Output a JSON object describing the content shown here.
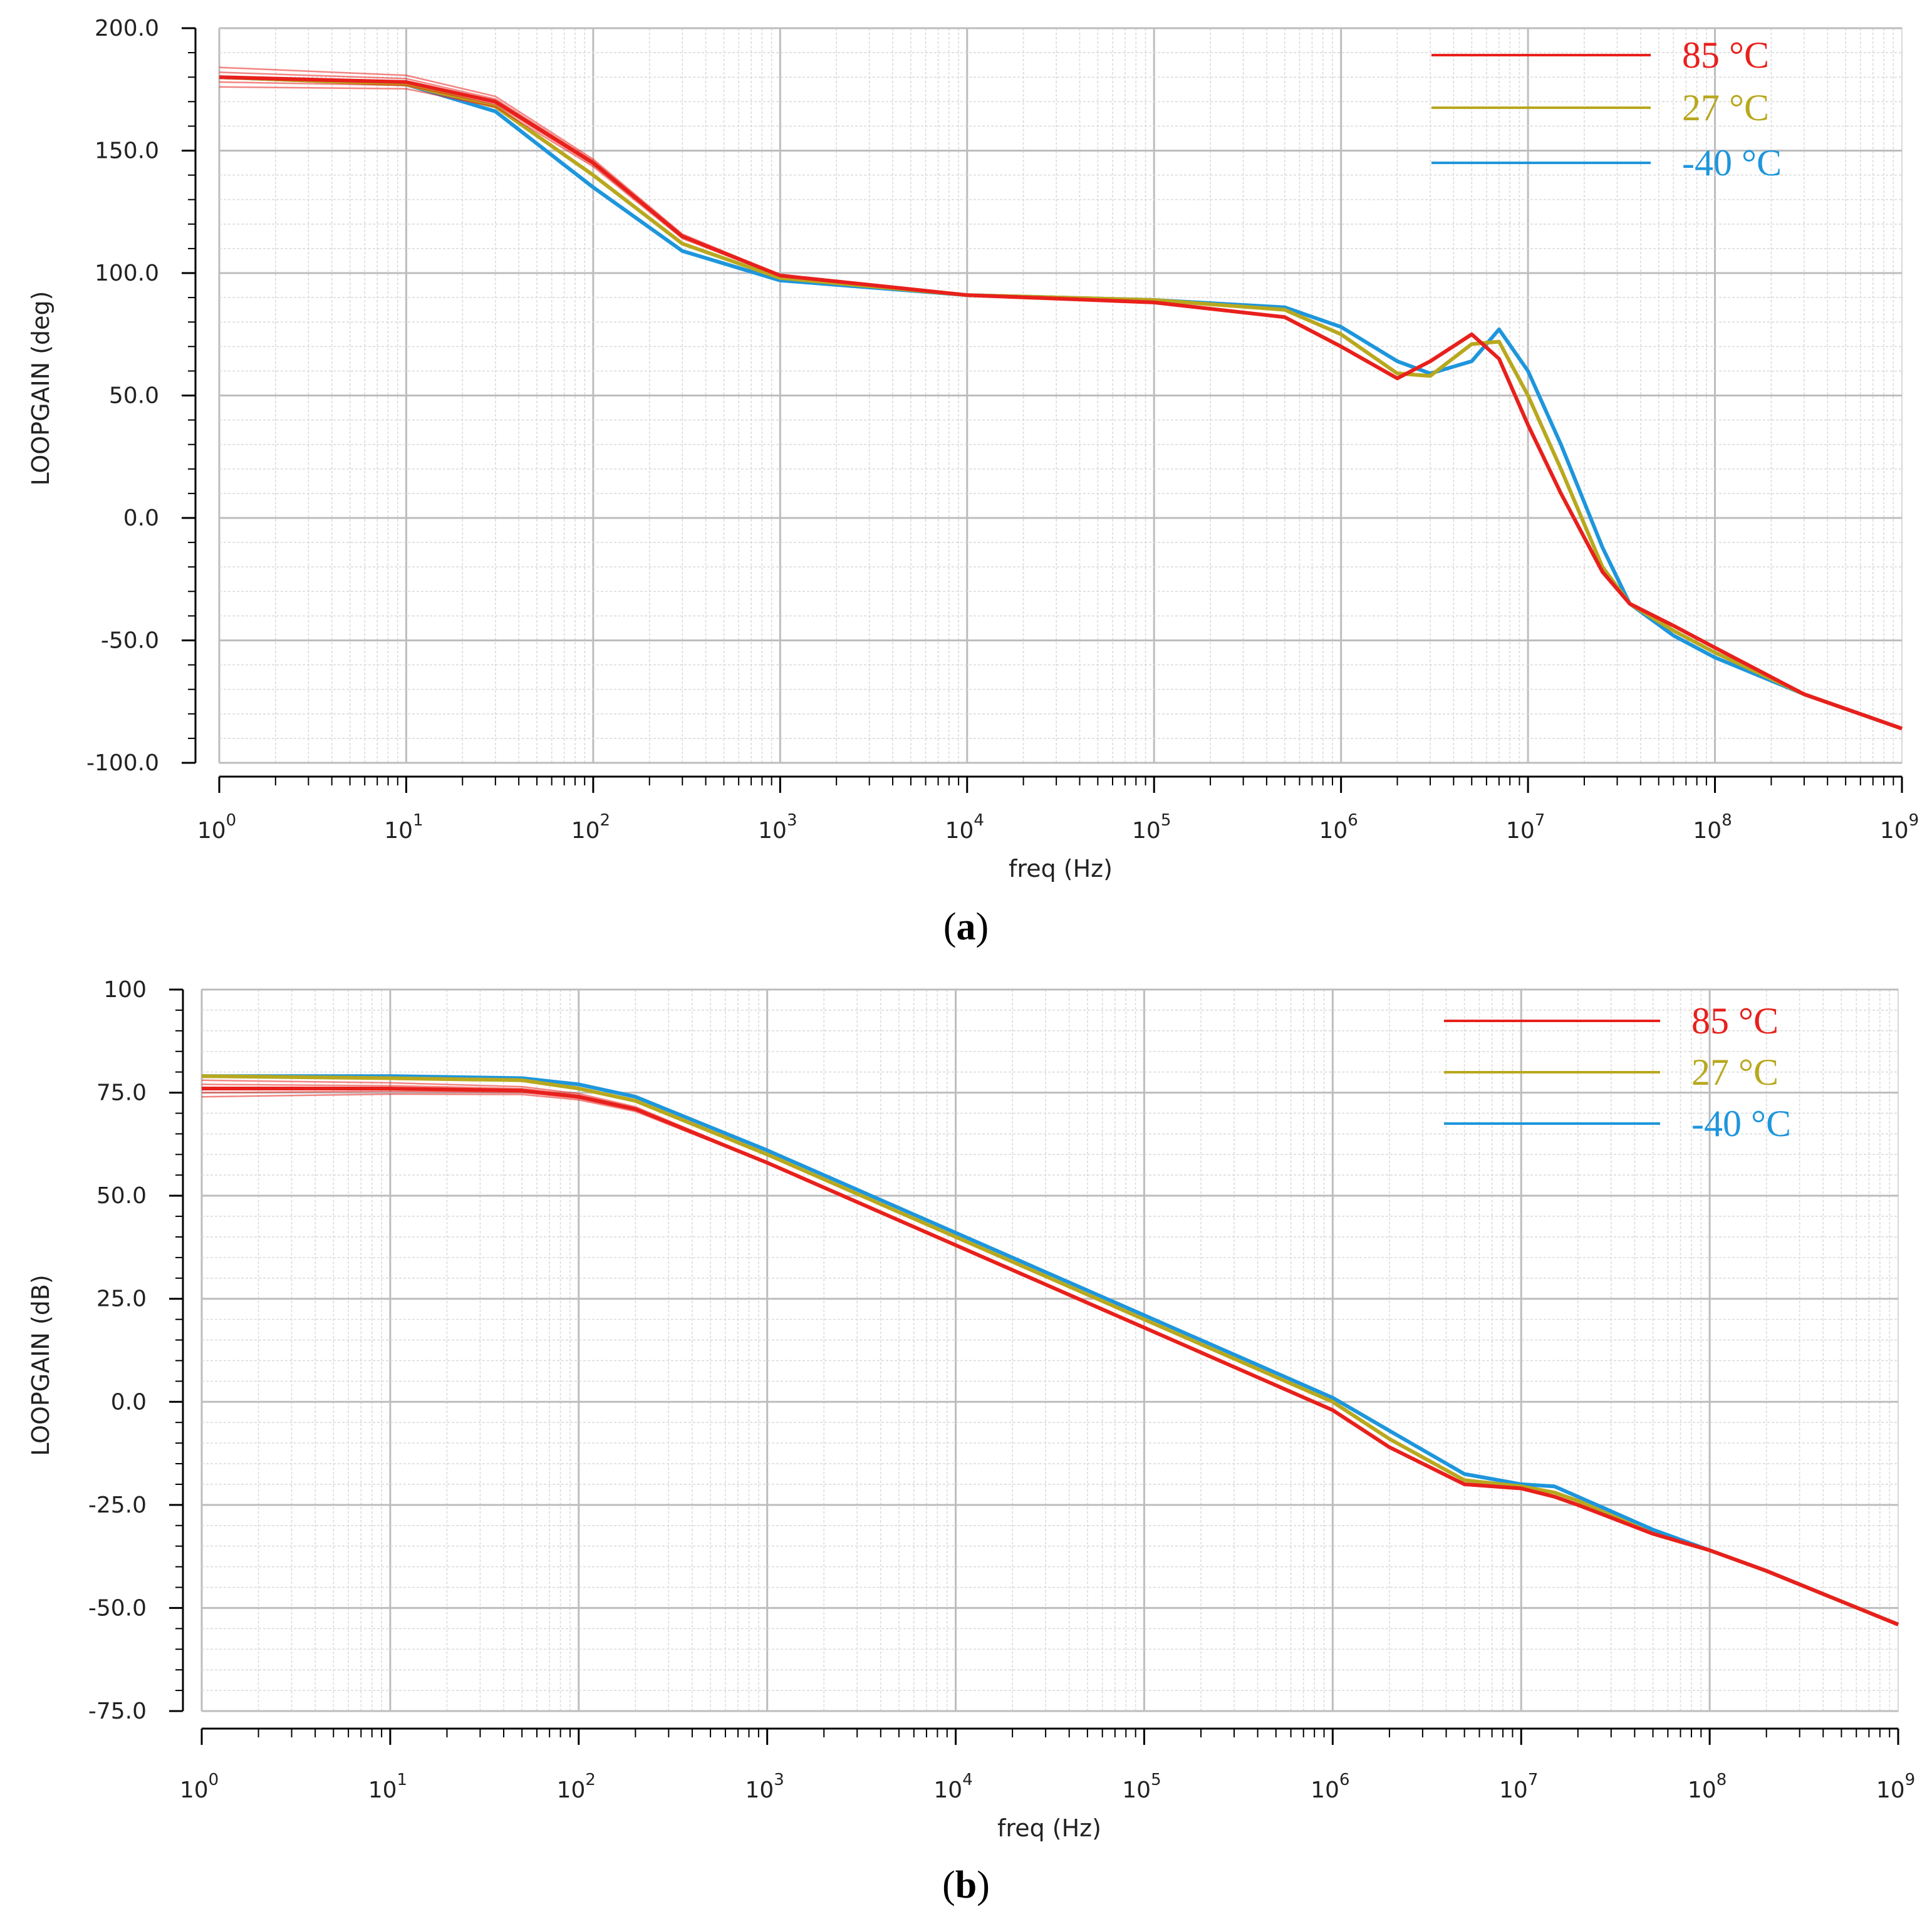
{
  "chart_data": [
    {
      "panel": "a",
      "caption": {
        "open": "(",
        "letter": "a",
        "close": ")"
      },
      "type": "line",
      "xlabel": "freq (Hz)",
      "ylabel": "LOOPGAIN (deg)",
      "xscale": "log",
      "xlim": [
        1,
        1000000000
      ],
      "ylim": [
        -100,
        200
      ],
      "yticks": [
        200,
        150,
        100,
        50,
        0,
        -50,
        -100
      ],
      "ytick_labels": [
        "200.0",
        "150.0",
        "100.0",
        "50.0",
        "0.0",
        "-50.0",
        "-100.0"
      ],
      "xtick_exponents": [
        "0",
        "1",
        "2",
        "3",
        "4",
        "5",
        "6",
        "7",
        "8",
        "9"
      ],
      "grid": true,
      "legend_position": "top-right",
      "legend": [
        {
          "label": "85 °C",
          "color": "#e8201c"
        },
        {
          "label": "27 °C",
          "color": "#b8a81e"
        },
        {
          "label": "-40 °C",
          "color": "#1e96dc"
        }
      ],
      "series": [
        {
          "name": "-40 °C",
          "color": "#1e96dc",
          "spread": 0,
          "x": [
            1,
            10,
            30,
            100,
            300,
            1000,
            10000,
            100000,
            500000,
            1000000,
            2000000,
            3000000,
            5000000,
            7000000,
            10000000,
            15000000,
            25000000,
            35000000,
            60000000,
            100000000,
            300000000,
            1000000000
          ],
          "y": [
            180,
            177,
            166,
            135,
            109,
            97,
            91,
            89,
            86,
            78,
            64,
            59,
            64,
            77,
            60,
            30,
            -12,
            -35,
            -48,
            -57,
            -72,
            -86
          ]
        },
        {
          "name": "27 °C",
          "color": "#b8a81e",
          "spread": 0,
          "x": [
            1,
            10,
            30,
            100,
            300,
            1000,
            10000,
            100000,
            500000,
            1000000,
            2000000,
            3000000,
            5000000,
            7000000,
            10000000,
            15000000,
            25000000,
            35000000,
            60000000,
            100000000,
            300000000,
            1000000000
          ],
          "y": [
            180,
            177,
            168,
            140,
            112,
            98,
            91,
            89,
            85,
            75,
            59,
            58,
            71,
            72,
            50,
            20,
            -20,
            -35,
            -46,
            -55,
            -72,
            -86
          ]
        },
        {
          "name": "85 °C",
          "color": "#e8201c",
          "spread": 4,
          "x": [
            1,
            10,
            30,
            100,
            300,
            1000,
            10000,
            100000,
            500000,
            1000000,
            2000000,
            3000000,
            5000000,
            7000000,
            10000000,
            15000000,
            25000000,
            35000000,
            60000000,
            100000000,
            300000000,
            1000000000
          ],
          "y": [
            180,
            178,
            170,
            145,
            115,
            99,
            91,
            88,
            82,
            70,
            57,
            64,
            75,
            65,
            38,
            10,
            -22,
            -35,
            -44,
            -53,
            -72,
            -86
          ]
        }
      ]
    },
    {
      "panel": "b",
      "caption": {
        "open": "(",
        "letter": "b",
        "close": ")"
      },
      "type": "line",
      "xlabel": "freq (Hz)",
      "ylabel": "LOOPGAIN (dB)",
      "xscale": "log",
      "xlim": [
        1,
        1000000000
      ],
      "ylim": [
        -75,
        100
      ],
      "yticks": [
        100,
        75,
        50,
        25,
        0,
        -25,
        -50,
        -75
      ],
      "ytick_labels": [
        "100",
        "75.0",
        "50.0",
        "25.0",
        "0.0",
        "-25.0",
        "-50.0",
        "-75.0"
      ],
      "xtick_exponents": [
        "0",
        "1",
        "2",
        "3",
        "4",
        "5",
        "6",
        "7",
        "8",
        "9"
      ],
      "grid": true,
      "legend_position": "top-right",
      "legend": [
        {
          "label": "85 °C",
          "color": "#e8201c"
        },
        {
          "label": "27 °C",
          "color": "#b8a81e"
        },
        {
          "label": "-40 °C",
          "color": "#1e96dc"
        }
      ],
      "series": [
        {
          "name": "-40 °C",
          "color": "#1e96dc",
          "spread": 0,
          "x": [
            1,
            10,
            50,
            100,
            200,
            1000,
            10000,
            100000,
            1000000,
            2000000,
            5000000,
            10000000,
            15000000,
            20000000,
            50000000,
            100000000,
            200000000,
            1000000000
          ],
          "y": [
            79,
            79,
            78.5,
            77,
            74,
            61,
            41,
            21,
            1,
            -7,
            -17.5,
            -20,
            -20.5,
            -23,
            -31,
            -36,
            -41,
            -54
          ]
        },
        {
          "name": "27 °C",
          "color": "#b8a81e",
          "spread": 0,
          "x": [
            1,
            10,
            50,
            100,
            200,
            1000,
            10000,
            100000,
            1000000,
            2000000,
            5000000,
            10000000,
            15000000,
            20000000,
            50000000,
            100000000,
            200000000,
            1000000000
          ],
          "y": [
            79,
            78.5,
            78,
            76,
            73,
            60,
            40,
            20,
            0,
            -9,
            -19,
            -20.5,
            -22,
            -24,
            -32,
            -36,
            -41,
            -54
          ]
        },
        {
          "name": "85 °C",
          "color": "#e8201c",
          "spread": 2,
          "x": [
            1,
            10,
            50,
            100,
            200,
            1000,
            10000,
            100000,
            1000000,
            2000000,
            5000000,
            10000000,
            15000000,
            20000000,
            50000000,
            100000000,
            200000000,
            1000000000
          ],
          "y": [
            76,
            76,
            75.5,
            74,
            71,
            58,
            38,
            18,
            -2,
            -11,
            -20,
            -21,
            -23,
            -25,
            -32,
            -36,
            -41,
            -54
          ]
        }
      ]
    }
  ]
}
